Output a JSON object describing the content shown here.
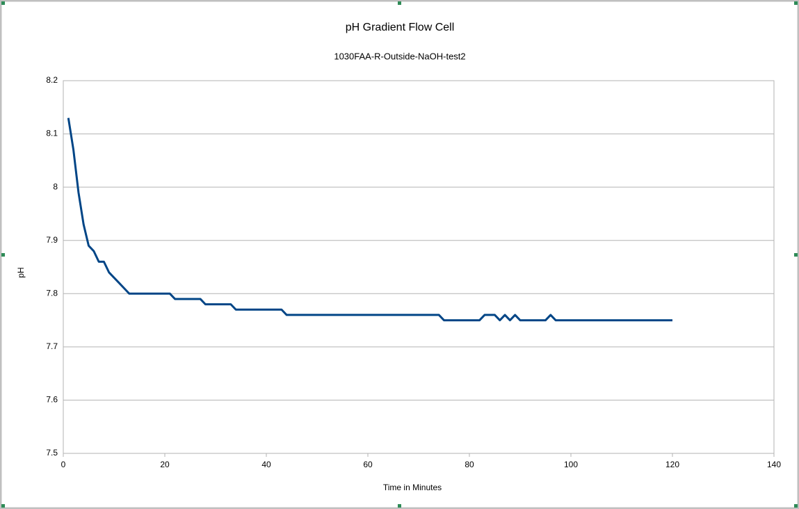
{
  "chart_data": {
    "type": "line",
    "title": "pH Gradient Flow Cell",
    "subtitle": "1030FAA-R-Outside-NaOH-test2",
    "x_label": "Time in Minutes",
    "y_label": "pH",
    "x": [
      1,
      2,
      3,
      4,
      5,
      6,
      7,
      8,
      9,
      10,
      11,
      12,
      13,
      14,
      15,
      16,
      17,
      18,
      19,
      20,
      21,
      22,
      23,
      24,
      25,
      26,
      27,
      28,
      29,
      30,
      31,
      32,
      33,
      34,
      35,
      36,
      37,
      38,
      39,
      40,
      41,
      42,
      43,
      44,
      45,
      46,
      47,
      48,
      49,
      50,
      51,
      52,
      53,
      54,
      55,
      56,
      57,
      58,
      59,
      60,
      61,
      62,
      63,
      64,
      65,
      66,
      67,
      68,
      69,
      70,
      71,
      72,
      73,
      74,
      75,
      76,
      77,
      78,
      79,
      80,
      81,
      82,
      83,
      84,
      85,
      86,
      87,
      88,
      89,
      90,
      91,
      92,
      93,
      94,
      95,
      96,
      97,
      98,
      99,
      100,
      101,
      102,
      103,
      104,
      105,
      106,
      107,
      108,
      109,
      110,
      111,
      112,
      113,
      114,
      115,
      116,
      117,
      118,
      119,
      120
    ],
    "series": [
      {
        "color": "#004586",
        "values": [
          8.13,
          8.07,
          7.99,
          7.93,
          7.89,
          7.88,
          7.86,
          7.86,
          7.84,
          7.83,
          7.82,
          7.81,
          7.8,
          7.8,
          7.8,
          7.8,
          7.8,
          7.8,
          7.8,
          7.8,
          7.8,
          7.79,
          7.79,
          7.79,
          7.79,
          7.79,
          7.79,
          7.78,
          7.78,
          7.78,
          7.78,
          7.78,
          7.78,
          7.77,
          7.77,
          7.77,
          7.77,
          7.77,
          7.77,
          7.77,
          7.77,
          7.77,
          7.77,
          7.76,
          7.76,
          7.76,
          7.76,
          7.76,
          7.76,
          7.76,
          7.76,
          7.76,
          7.76,
          7.76,
          7.76,
          7.76,
          7.76,
          7.76,
          7.76,
          7.76,
          7.76,
          7.76,
          7.76,
          7.76,
          7.76,
          7.76,
          7.76,
          7.76,
          7.76,
          7.76,
          7.76,
          7.76,
          7.76,
          7.76,
          7.75,
          7.75,
          7.75,
          7.75,
          7.75,
          7.75,
          7.75,
          7.75,
          7.76,
          7.76,
          7.76,
          7.75,
          7.76,
          7.75,
          7.76,
          7.75,
          7.75,
          7.75,
          7.75,
          7.75,
          7.75,
          7.76,
          7.75,
          7.75,
          7.75,
          7.75,
          7.75,
          7.75,
          7.75,
          7.75,
          7.75,
          7.75,
          7.75,
          7.75,
          7.75,
          7.75,
          7.75,
          7.75,
          7.75,
          7.75,
          7.75,
          7.75,
          7.75,
          7.75,
          7.75,
          7.75
        ]
      }
    ],
    "xlim": [
      0,
      140
    ],
    "xticks": [
      0,
      20,
      40,
      60,
      80,
      100,
      120,
      140
    ],
    "ylim": [
      7.5,
      8.2
    ],
    "yticks": [
      7.5,
      7.6,
      7.7,
      7.8,
      7.9,
      8,
      8.1,
      8.2
    ],
    "grid": true
  }
}
